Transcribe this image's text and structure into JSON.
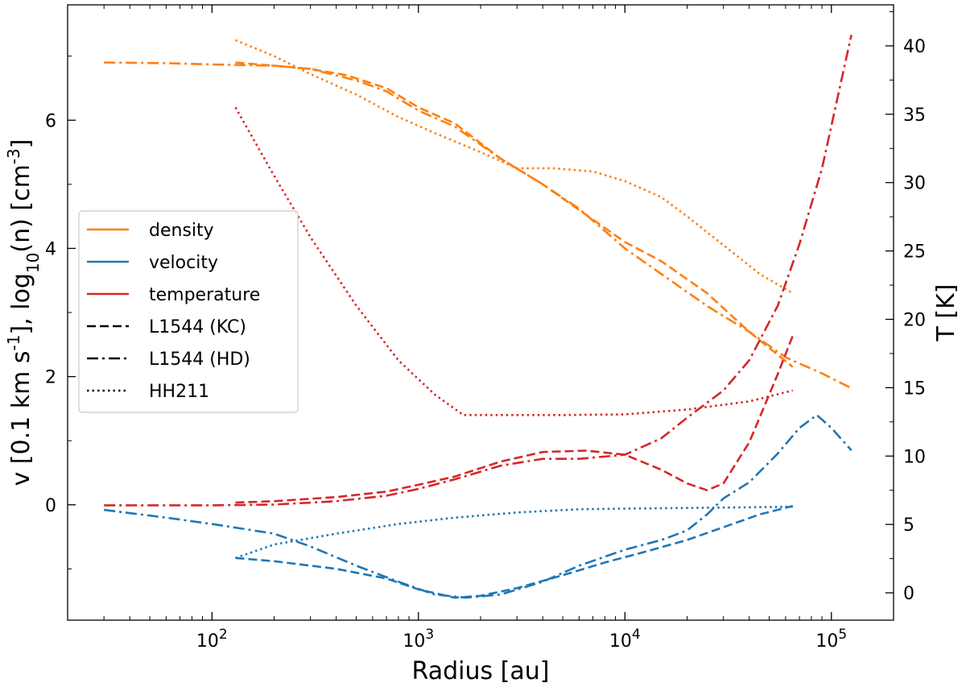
{
  "chart_data": {
    "type": "line",
    "xlabel": "Radius    [au]",
    "ylabel_left_parts": [
      "v  [0.1 km s",
      "-1",
      "],    log",
      "10",
      "(n)   [cm",
      "-3",
      "]"
    ],
    "ylabel_right": "T  [K]",
    "x_scale": "log",
    "xlim": [
      20,
      200000
    ],
    "ylim_left": [
      -1.8,
      7.8
    ],
    "ylim_right": [
      -2,
      43
    ],
    "x_tick_labels": [
      {
        "base": "10",
        "exp": "2",
        "value": 100
      },
      {
        "base": "10",
        "exp": "3",
        "value": 1000
      },
      {
        "base": "10",
        "exp": "4",
        "value": 10000
      },
      {
        "base": "10",
        "exp": "5",
        "value": 100000
      }
    ],
    "y_left_ticks": [
      0,
      2,
      4,
      6
    ],
    "y_left_tick_labels": [
      "0",
      "2",
      "4",
      "6"
    ],
    "y_right_ticks": [
      0,
      5,
      10,
      15,
      20,
      25,
      30,
      35,
      40
    ],
    "y_right_tick_labels": [
      "0",
      "5",
      "10",
      "15",
      "20",
      "25",
      "30",
      "35",
      "40"
    ],
    "grid": false,
    "legend_position": "center-left",
    "legend": [
      {
        "label": "density",
        "color": "#ff7f0e",
        "dash": "solid"
      },
      {
        "label": "velocity",
        "color": "#1f77b4",
        "dash": "solid"
      },
      {
        "label": "temperature",
        "color": "#d62728",
        "dash": "solid"
      },
      {
        "label": "L1544 (KC)",
        "color": "#000000",
        "dash": "dashed"
      },
      {
        "label": "L1544 (HD)",
        "color": "#000000",
        "dash": "dashdot"
      },
      {
        "label": "HH211",
        "color": "#000000",
        "dash": "dotted"
      }
    ],
    "series": [
      {
        "quantity": "density",
        "model": "L1544 (KC)",
        "color": "#ff7f0e",
        "dash": "dashed",
        "axis": "left",
        "x": [
          130,
          200,
          300,
          450,
          700,
          1000,
          1500,
          2500,
          4000,
          6000,
          10000,
          15000,
          25000,
          40000,
          65000
        ],
        "y": [
          6.9,
          6.85,
          6.8,
          6.7,
          6.5,
          6.2,
          5.95,
          5.4,
          5.0,
          4.6,
          4.1,
          3.8,
          3.3,
          2.7,
          2.15
        ]
      },
      {
        "quantity": "density",
        "model": "L1544 (HD)",
        "color": "#ff7f0e",
        "dash": "dashdot",
        "axis": "left",
        "x": [
          30,
          60,
          100,
          200,
          300,
          500,
          700,
          1000,
          1500,
          2500,
          4000,
          6000,
          10000,
          15000,
          25000,
          40000,
          60000,
          90000,
          125000
        ],
        "y": [
          6.9,
          6.89,
          6.87,
          6.85,
          6.8,
          6.62,
          6.45,
          6.15,
          5.9,
          5.4,
          5.0,
          4.62,
          4.0,
          3.6,
          3.1,
          2.7,
          2.3,
          2.05,
          1.82
        ]
      },
      {
        "quantity": "density",
        "model": "HH211",
        "color": "#ff7f0e",
        "dash": "dotted",
        "axis": "left",
        "x": [
          130,
          200,
          300,
          500,
          800,
          1200,
          2000,
          3000,
          4500,
          7000,
          10000,
          15000,
          20000,
          30000,
          45000,
          65000
        ],
        "y": [
          7.25,
          7.0,
          6.72,
          6.4,
          6.05,
          5.8,
          5.5,
          5.25,
          5.25,
          5.2,
          5.05,
          4.8,
          4.5,
          4.05,
          3.6,
          3.3
        ]
      },
      {
        "quantity": "velocity",
        "model": "L1544 (KC)",
        "color": "#1f77b4",
        "dash": "dashed",
        "axis": "left",
        "x": [
          130,
          200,
          400,
          700,
          1000,
          1500,
          2000,
          3000,
          5000,
          8000,
          12000,
          20000,
          30000,
          45000,
          65000
        ],
        "y": [
          -0.83,
          -0.88,
          -1.0,
          -1.15,
          -1.32,
          -1.45,
          -1.42,
          -1.3,
          -1.1,
          -0.9,
          -0.75,
          -0.55,
          -0.35,
          -0.15,
          -0.02
        ]
      },
      {
        "quantity": "velocity",
        "model": "L1544 (HD)",
        "color": "#1f77b4",
        "dash": "dashdot",
        "axis": "left",
        "x": [
          30,
          60,
          100,
          200,
          300,
          500,
          800,
          1200,
          1700,
          2500,
          4000,
          6000,
          10000,
          15000,
          20000,
          25000,
          30000,
          40000,
          55000,
          70000,
          85000,
          100000,
          125000
        ],
        "y": [
          -0.08,
          -0.2,
          -0.3,
          -0.45,
          -0.65,
          -0.95,
          -1.2,
          -1.4,
          -1.45,
          -1.4,
          -1.2,
          -0.95,
          -0.7,
          -0.55,
          -0.4,
          -0.15,
          0.1,
          0.35,
          0.8,
          1.2,
          1.4,
          1.2,
          0.85
        ]
      },
      {
        "quantity": "velocity",
        "model": "HH211",
        "color": "#1f77b4",
        "dash": "dotted",
        "axis": "left",
        "x": [
          130,
          200,
          400,
          800,
          1500,
          3000,
          6000,
          10000,
          20000,
          40000,
          65000
        ],
        "y": [
          -0.83,
          -0.62,
          -0.45,
          -0.3,
          -0.2,
          -0.12,
          -0.07,
          -0.06,
          -0.05,
          -0.04,
          -0.03
        ]
      },
      {
        "quantity": "temperature",
        "model": "L1544 (KC)",
        "color": "#d62728",
        "dash": "dashed",
        "axis": "right",
        "x": [
          130,
          200,
          400,
          700,
          1000,
          1500,
          2500,
          4000,
          6500,
          10000,
          15000,
          20000,
          25000,
          30000,
          40000,
          55000,
          65000
        ],
        "y": [
          6.6,
          6.7,
          7.0,
          7.4,
          7.9,
          8.5,
          9.6,
          10.3,
          10.4,
          10.1,
          9.0,
          8.0,
          7.5,
          8.0,
          11.0,
          16.0,
          18.8
        ]
      },
      {
        "quantity": "temperature",
        "model": "L1544 (HD)",
        "color": "#d62728",
        "dash": "dashdot",
        "axis": "right",
        "x": [
          30,
          60,
          100,
          200,
          400,
          700,
          1000,
          1500,
          2500,
          4000,
          6000,
          10000,
          15000,
          20000,
          30000,
          40000,
          55000,
          70000,
          90000,
          110000,
          125000
        ],
        "y": [
          6.4,
          6.4,
          6.4,
          6.45,
          6.7,
          7.1,
          7.6,
          8.3,
          9.3,
          9.8,
          9.8,
          10.1,
          11.3,
          12.8,
          14.8,
          17.0,
          21.0,
          25.5,
          31.0,
          37.0,
          40.8
        ]
      },
      {
        "quantity": "temperature",
        "model": "HH211",
        "color": "#d62728",
        "dash": "dotted",
        "axis": "right",
        "x": [
          130,
          200,
          300,
          500,
          800,
          1200,
          1650,
          2500,
          5000,
          10000,
          20000,
          40000,
          65000
        ],
        "y": [
          35.5,
          30.5,
          26.0,
          21.0,
          17.0,
          14.5,
          13.0,
          13.0,
          13.0,
          13.05,
          13.4,
          14.0,
          14.8
        ]
      }
    ]
  }
}
